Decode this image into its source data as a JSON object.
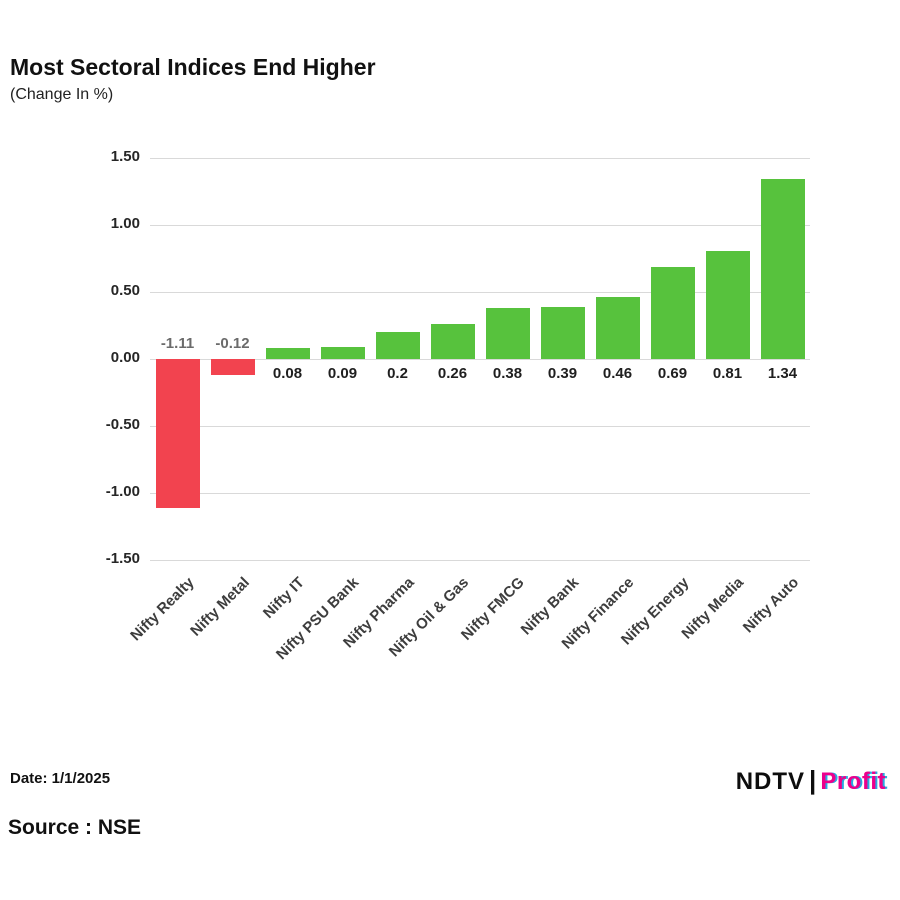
{
  "chart_data": {
    "type": "bar",
    "title": "Most Sectoral Indices End Higher",
    "subtitle": "(Change In %)",
    "categories": [
      "Nifty Realty",
      "Nifty Metal",
      "Nifty IT",
      "Nifty PSU Bank",
      "Nifty Pharma",
      "Nifty Oil & Gas",
      "Nifty FMCG",
      "Nifty Bank",
      "Nifty Finance",
      "Nifty Energy",
      "Nifty Media",
      "Nifty Auto"
    ],
    "values": [
      -1.11,
      -0.12,
      0.08,
      0.09,
      0.2,
      0.26,
      0.38,
      0.39,
      0.46,
      0.69,
      0.81,
      1.34
    ],
    "value_labels": [
      "-1.11",
      "-0.12",
      "0.08",
      "0.09",
      "0.2",
      "0.26",
      "0.38",
      "0.39",
      "0.46",
      "0.69",
      "0.81",
      "1.34"
    ],
    "ylim": [
      -1.5,
      1.5
    ],
    "yticks": [
      {
        "value": 1.5,
        "label": "1.50"
      },
      {
        "value": 1.0,
        "label": "1.00"
      },
      {
        "value": 0.5,
        "label": "0.50"
      },
      {
        "value": 0.0,
        "label": "0.00"
      },
      {
        "value": -0.5,
        "label": "-0.50"
      },
      {
        "value": -1.0,
        "label": "-1.00"
      },
      {
        "value": -1.5,
        "label": "-1.50"
      }
    ],
    "grid": true,
    "legend": "none",
    "colors": {
      "positive": "#57c23d",
      "negative": "#f2434f",
      "gridline": "#d9d9d9"
    }
  },
  "footer": {
    "date": "Date: 1/1/2025",
    "source": "Source : NSE",
    "logo": {
      "ndtv": "NDTV",
      "separator": "|",
      "profit": "Profit",
      "profit_color": "#ec008c",
      "profit_accent": "#27aae1"
    }
  }
}
